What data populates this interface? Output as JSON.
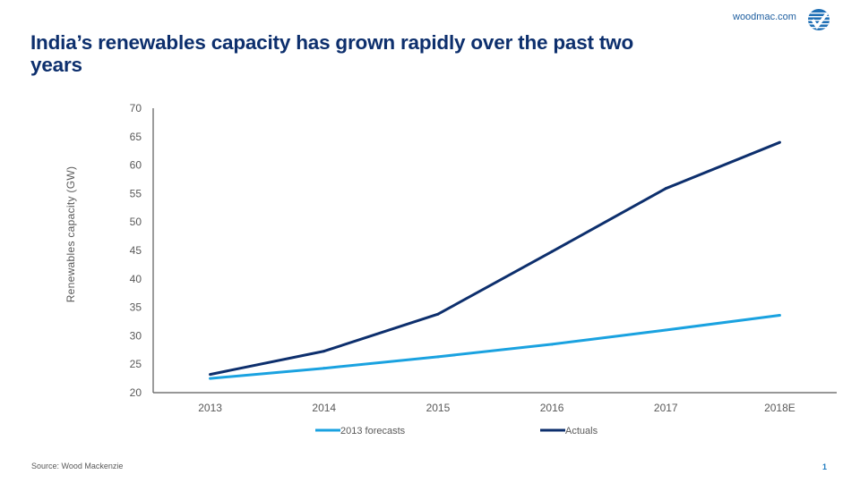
{
  "header": {
    "site": "woodmac.com",
    "logo_icon": "woodmac-check-globe-icon",
    "title": "India’s renewables capacity has grown rapidly over the past two years"
  },
  "footer": {
    "source": "Source: Wood Mackenzie",
    "page_number": "1"
  },
  "colors": {
    "forecast": "#1aa2e0",
    "actual": "#0d2f6d",
    "axis": "#595959",
    "title": "#0d2f6d"
  },
  "chart_data": {
    "type": "line",
    "title": "",
    "xlabel": "",
    "ylabel": "Renewables  capacity (GW)",
    "ylim": [
      20,
      70
    ],
    "yticks": [
      "70",
      "65",
      "60",
      "55",
      "50",
      "45",
      "40",
      "35",
      "30",
      "25",
      "20"
    ],
    "ytick_values": [
      70,
      65,
      60,
      55,
      50,
      45,
      40,
      35,
      30,
      25,
      20
    ],
    "categories": [
      "2013",
      "2014",
      "2015",
      "2016",
      "2017",
      "2018E"
    ],
    "grid": false,
    "legend_position": "bottom",
    "series": [
      {
        "name": "2013 forecasts",
        "color": "#1aa2e0",
        "values": [
          22.5,
          24.3,
          26.3,
          28.5,
          31.0,
          33.6
        ]
      },
      {
        "name": "Actuals",
        "color": "#0d2f6d",
        "values": [
          23.2,
          27.3,
          33.8,
          44.8,
          55.9,
          64.0
        ]
      }
    ]
  }
}
